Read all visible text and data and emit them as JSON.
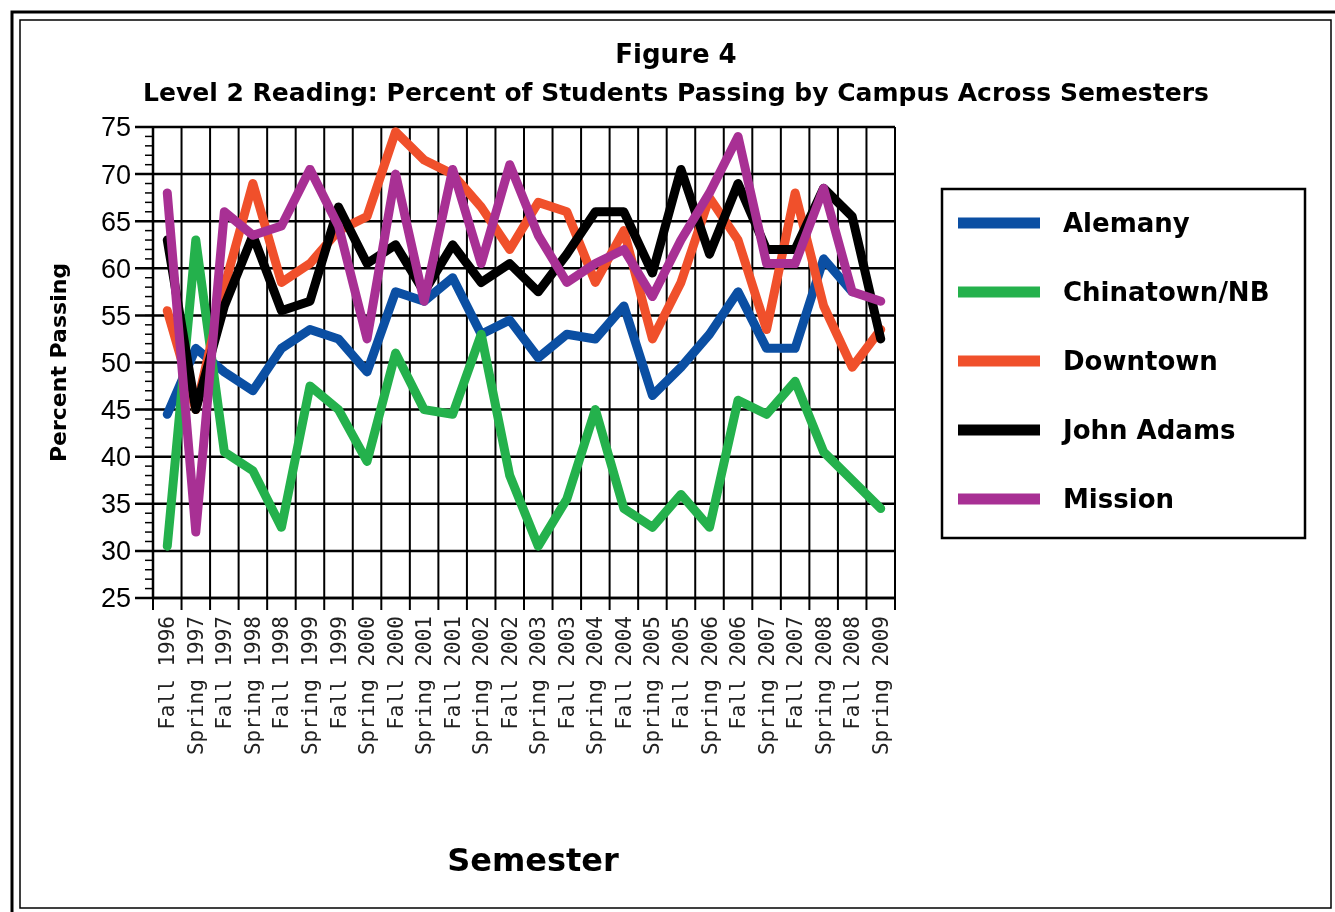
{
  "chart_data": {
    "type": "line",
    "title": "Figure 4",
    "subtitle": "Level 2 Reading: Percent of Students Passing by Campus Across Semesters",
    "xlabel": "Semester",
    "ylabel": "Percent Passing",
    "categories": [
      "Fall 1996",
      "Spring 1997",
      "Fall 1997",
      "Spring 1998",
      "Fall 1998",
      "Spring 1999",
      "Fall 1999",
      "Spring 2000",
      "Fall 2000",
      "Spring 2001",
      "Fall 2001",
      "Spring 2002",
      "Fall 2002",
      "Spring 2003",
      "Fall 2003",
      "Spring 2004",
      "Fall 2004",
      "Spring 2005",
      "Fall 2005",
      "Spring 2006",
      "Fall 2006",
      "Spring 2007",
      "Fall 2007",
      "Spring 2008",
      "Fall 2008",
      "Spring 2009"
    ],
    "series": [
      {
        "name": "Alemany",
        "color": "#0b4fa3",
        "values": [
          44.5,
          51.5,
          49,
          47,
          51.5,
          53.5,
          52.5,
          49,
          57.5,
          56.5,
          59,
          53,
          54.5,
          50.5,
          53,
          52.5,
          56,
          46.5,
          49.5,
          53,
          57.5,
          51.5,
          51.5,
          61,
          57.5,
          null
        ]
      },
      {
        "name": "Chinatown/NB",
        "color": "#24b14c",
        "values": [
          30.5,
          63,
          40.5,
          38.5,
          32.5,
          47.5,
          45,
          39.5,
          51,
          45,
          44.5,
          53,
          38,
          30.5,
          35.5,
          45,
          34.5,
          32.5,
          36,
          32.5,
          46,
          44.5,
          48,
          40.5,
          37.5,
          34.5
        ]
      },
      {
        "name": "Downtown",
        "color": "#f0502b",
        "values": [
          55.5,
          45,
          58,
          69,
          58.5,
          60.5,
          64,
          65.5,
          74.5,
          71.5,
          70,
          66.5,
          62,
          67,
          66,
          58.5,
          64,
          52.5,
          58.5,
          67.5,
          63,
          53.5,
          68,
          56,
          49.5,
          53.5
        ]
      },
      {
        "name": "John Adams",
        "color": "#000000",
        "values": [
          63,
          45,
          56,
          63.5,
          55.5,
          56.5,
          66.5,
          60.5,
          62.5,
          57.5,
          62.5,
          58.5,
          60.5,
          57.5,
          61.5,
          66,
          66,
          59.5,
          70.5,
          61.5,
          69,
          62,
          62,
          68.5,
          65.5,
          52.5
        ]
      },
      {
        "name": "Mission",
        "color": "#a83094",
        "values": [
          68,
          32,
          66,
          63.5,
          64.5,
          70.5,
          64.5,
          52.5,
          70,
          56.5,
          70.5,
          60.5,
          71,
          63.5,
          58.5,
          60.5,
          62,
          57,
          63,
          68,
          74,
          60.5,
          60.5,
          68.5,
          57.5,
          56.5
        ]
      }
    ],
    "ylim": [
      25,
      75
    ],
    "yticks": [
      25,
      30,
      35,
      40,
      45,
      50,
      55,
      60,
      65,
      70,
      75
    ],
    "grid": true,
    "legend": "right",
    "marker": "none",
    "line_style": "solid"
  }
}
